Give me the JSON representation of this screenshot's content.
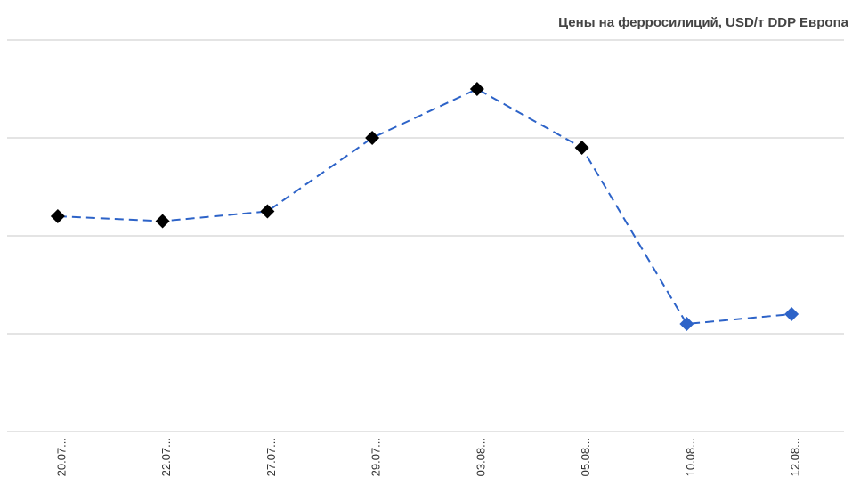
{
  "chart_data": {
    "type": "line",
    "title": "Цены на ферросилиций, USD/т DDP Европа",
    "categories": [
      "20.07...",
      "22.07...",
      "27.07...",
      "29.07...",
      "03.08...",
      "05.08...",
      "10.08...",
      "12.08..."
    ],
    "series": [
      {
        "color": "#2d63c8",
        "values": [
          2.2,
          2.15,
          2.25,
          3.0,
          3.5,
          2.9,
          1.1,
          1.2
        ],
        "marker_colors": [
          "#000000",
          "#000000",
          "#000000",
          "#000000",
          "#000000",
          "#000000",
          "#2d63c8",
          "#2d63c8"
        ]
      }
    ],
    "ylim": [
      0,
      4
    ],
    "yticks": [
      0,
      1,
      2,
      3,
      4
    ],
    "grid": true,
    "line_style": "dashed",
    "marker": "diamond"
  }
}
